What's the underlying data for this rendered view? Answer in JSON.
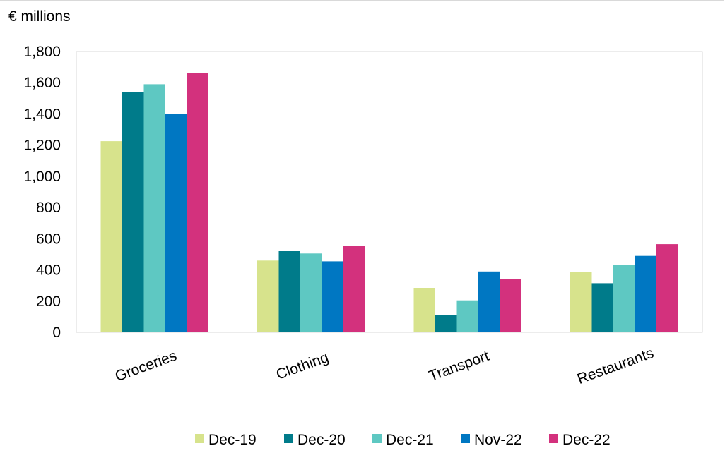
{
  "chart_data": {
    "type": "bar",
    "unit_label": "€ millions",
    "categories": [
      "Groceries",
      "Clothing",
      "Transport",
      "Restaurants"
    ],
    "series": [
      {
        "name": "Dec-19",
        "color": "#d7e38c",
        "values": [
          1225,
          460,
          285,
          385
        ]
      },
      {
        "name": "Dec-20",
        "color": "#007b8a",
        "values": [
          1540,
          520,
          110,
          315
        ]
      },
      {
        "name": "Dec-21",
        "color": "#5ec8c2",
        "values": [
          1590,
          505,
          205,
          430
        ]
      },
      {
        "name": "Nov-22",
        "color": "#0077c2",
        "values": [
          1400,
          455,
          390,
          490
        ]
      },
      {
        "name": "Dec-22",
        "color": "#d3317d",
        "values": [
          1660,
          555,
          340,
          565
        ]
      }
    ],
    "ylim": [
      0,
      1800
    ],
    "yticks": [
      0,
      200,
      400,
      600,
      800,
      1000,
      1200,
      1400,
      1600,
      1800
    ],
    "ytick_labels": [
      "0",
      "200",
      "400",
      "600",
      "800",
      "1,000",
      "1,200",
      "1,400",
      "1,600",
      "1,800"
    ],
    "legend_position": "bottom",
    "grid": false
  }
}
